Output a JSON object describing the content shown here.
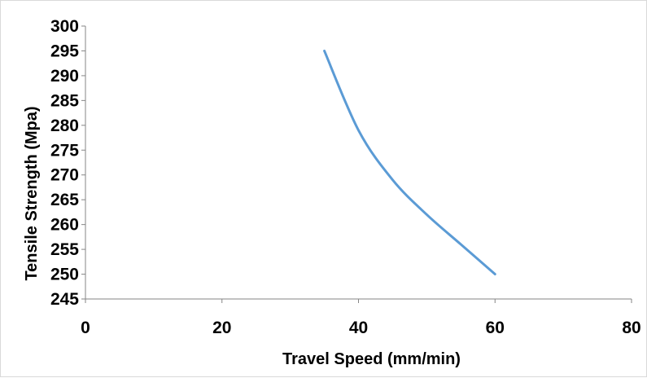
{
  "chart_data": {
    "type": "line",
    "title": "",
    "xlabel": "Travel Speed (mm/min)",
    "ylabel": "Tensile Strength (Mpa)",
    "xlim": [
      0,
      80
    ],
    "ylim": [
      245,
      300
    ],
    "x_ticks": [
      0,
      20,
      40,
      60,
      80
    ],
    "y_ticks": [
      245,
      250,
      255,
      260,
      265,
      270,
      275,
      280,
      285,
      290,
      295,
      300
    ],
    "grid": false,
    "legend": "none",
    "series": [
      {
        "color": "#5b9bd5",
        "x": [
          35,
          40,
          45,
          50,
          55,
          60
        ],
        "y": [
          295,
          279,
          269,
          262,
          256,
          250
        ]
      }
    ]
  }
}
